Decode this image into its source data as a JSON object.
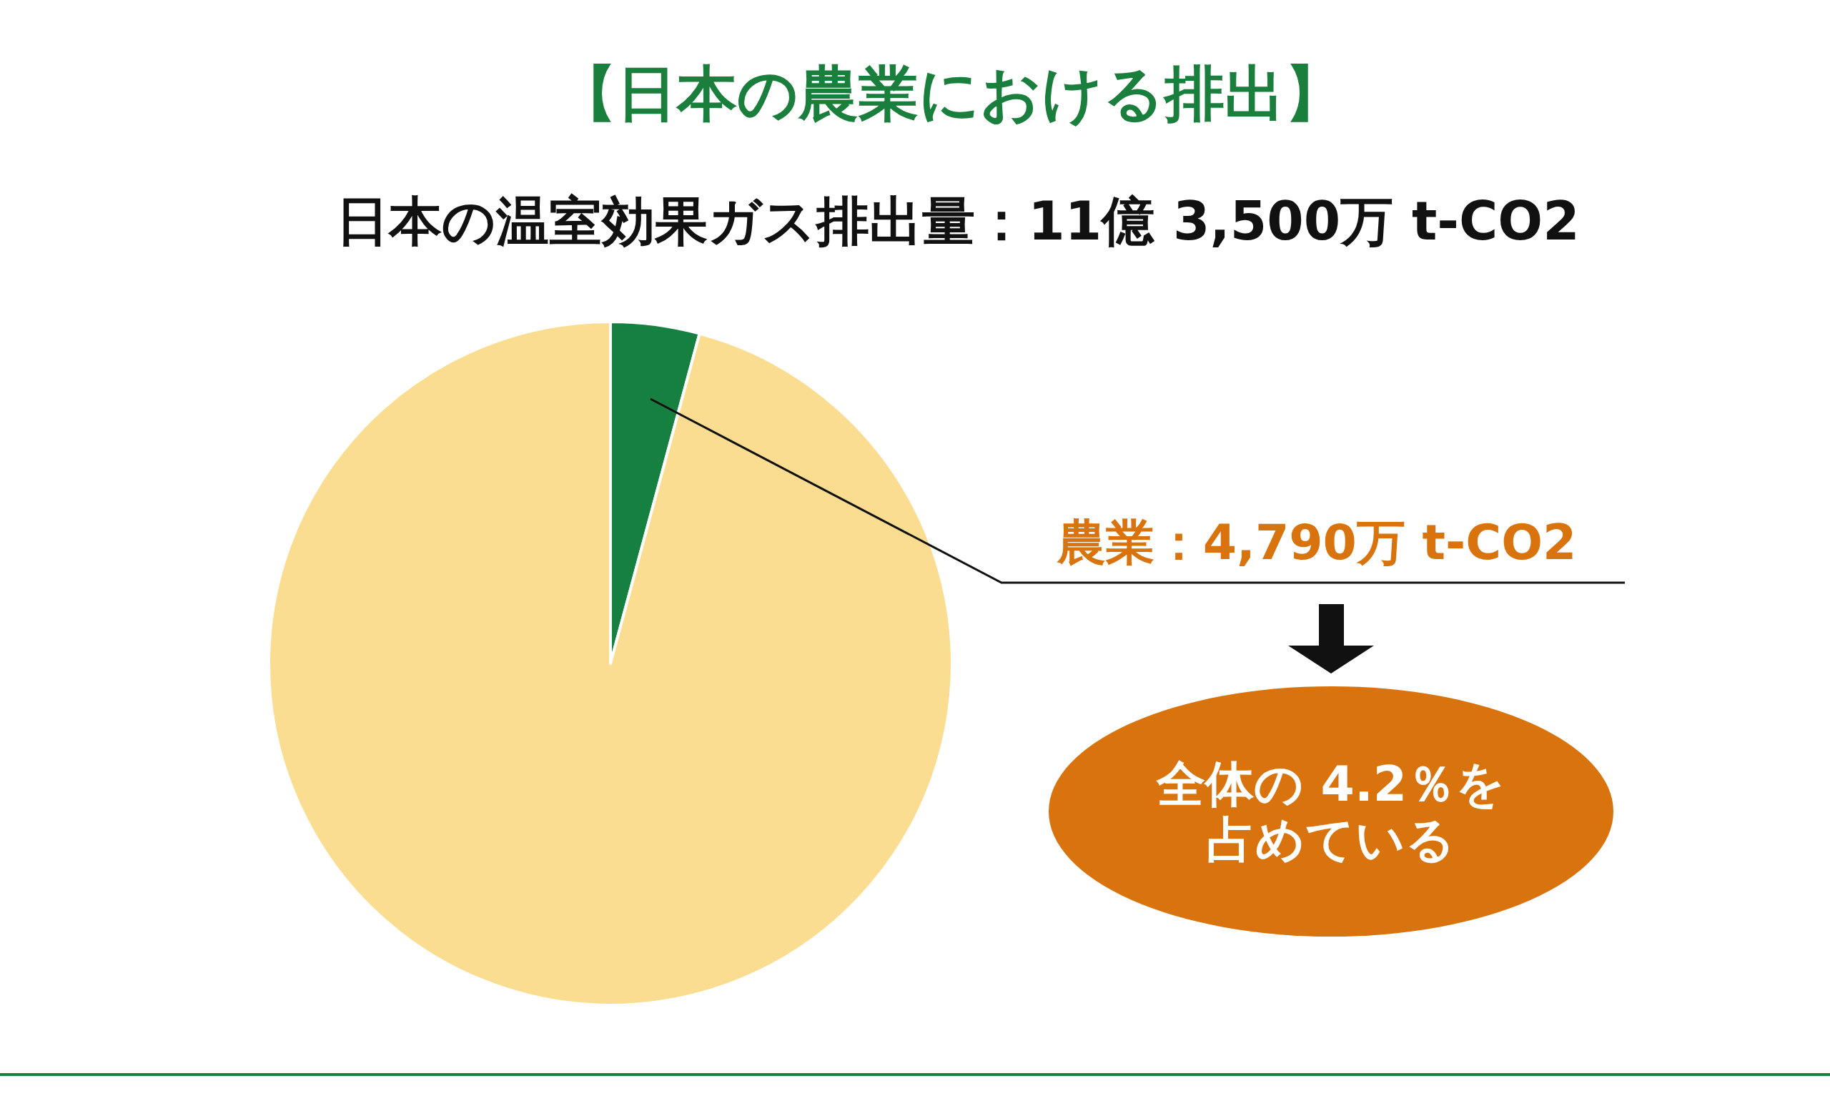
{
  "chart_data": {
    "type": "pie",
    "title": "【日本の農業における排出】",
    "subtitle": "日本の温室効果ガス排出量：11億 3,500万 t-CO2",
    "categories": [
      null,
      null
    ],
    "values": [
      4.2,
      95.8
    ],
    "colors": [
      "#168040",
      "#fbdd92"
    ],
    "annotations": [
      "農業：4,790万 t-CO2",
      "全体の 4.2％を",
      "占めている"
    ]
  }
}
